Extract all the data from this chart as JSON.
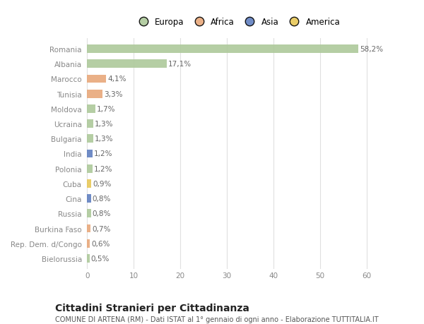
{
  "countries": [
    "Romania",
    "Albania",
    "Marocco",
    "Tunisia",
    "Moldova",
    "Ucraina",
    "Bulgaria",
    "India",
    "Polonia",
    "Cuba",
    "Cina",
    "Russia",
    "Burkina Faso",
    "Rep. Dem. d/Congo",
    "Bielorussia"
  ],
  "values": [
    58.2,
    17.1,
    4.1,
    3.3,
    1.7,
    1.3,
    1.3,
    1.2,
    1.2,
    0.9,
    0.8,
    0.8,
    0.7,
    0.6,
    0.5
  ],
  "labels": [
    "58,2%",
    "17,1%",
    "4,1%",
    "3,3%",
    "1,7%",
    "1,3%",
    "1,3%",
    "1,2%",
    "1,2%",
    "0,9%",
    "0,8%",
    "0,8%",
    "0,7%",
    "0,6%",
    "0,5%"
  ],
  "continents": [
    "Europa",
    "Europa",
    "Africa",
    "Africa",
    "Europa",
    "Europa",
    "Europa",
    "Asia",
    "Europa",
    "America",
    "Asia",
    "Europa",
    "Africa",
    "Africa",
    "Europa"
  ],
  "continent_colors": {
    "Europa": "#adc99a",
    "Africa": "#e8a87a",
    "Asia": "#6080c0",
    "America": "#e8c858"
  },
  "legend_order": [
    "Europa",
    "Africa",
    "Asia",
    "America"
  ],
  "title": "Cittadini Stranieri per Cittadinanza",
  "subtitle": "COMUNE DI ARTENA (RM) - Dati ISTAT al 1° gennaio di ogni anno - Elaborazione TUTTITALIA.IT",
  "xlim": [
    -0.5,
    65
  ],
  "xticks": [
    0,
    10,
    20,
    30,
    40,
    50,
    60
  ],
  "background_color": "#ffffff",
  "plot_bg_color": "#ffffff",
  "grid_color": "#e0e0e0",
  "bar_height": 0.55,
  "label_fontsize": 7.5,
  "tick_fontsize": 7.5,
  "title_fontsize": 10,
  "subtitle_fontsize": 7,
  "label_color": "#666666",
  "tick_color": "#888888"
}
